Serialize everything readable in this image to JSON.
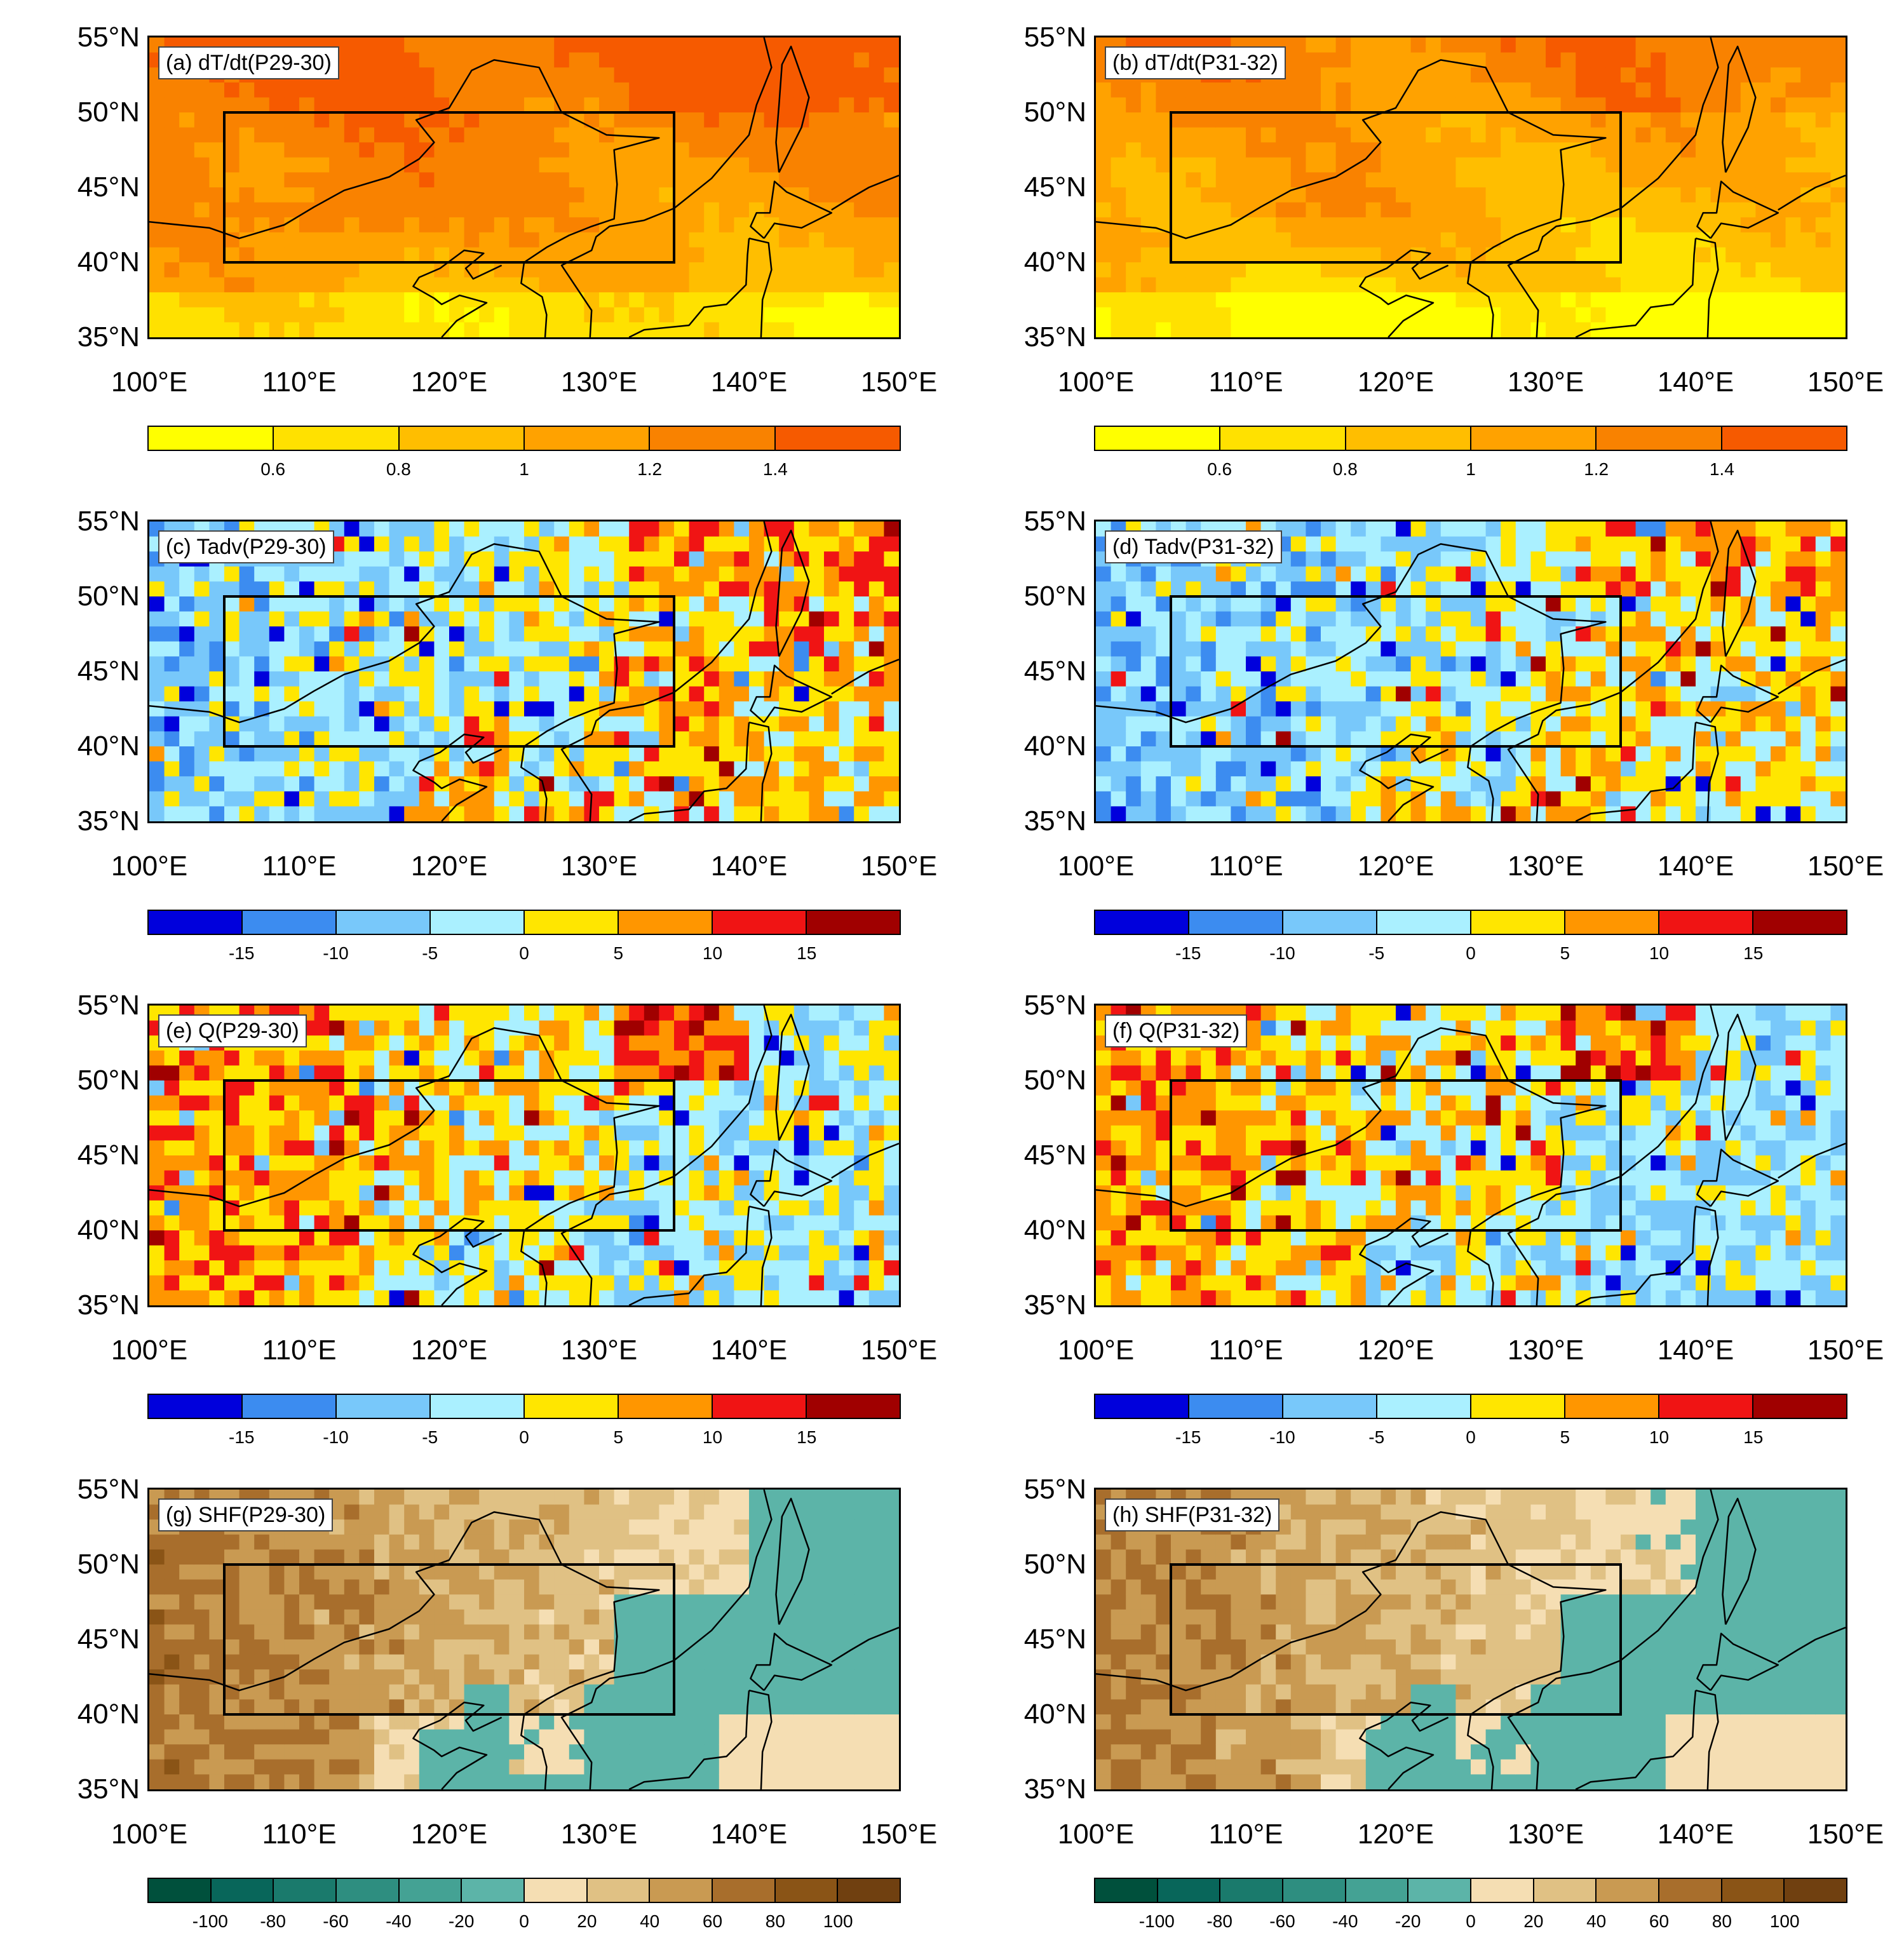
{
  "figure": {
    "lat_labels": [
      "55°N",
      "50°N",
      "45°N",
      "40°N",
      "35°N"
    ],
    "lon_labels": [
      "100°E",
      "110°E",
      "120°E",
      "130°E",
      "140°E",
      "150°E"
    ],
    "box_region": {
      "lon": [
        105,
        135
      ],
      "lat": [
        40,
        50
      ]
    },
    "colorbars": {
      "dtdt": {
        "colors": [
          "#ffff00",
          "#ffe100",
          "#ffbe00",
          "#ffa200",
          "#f98200",
          "#f65a00"
        ],
        "labels": [
          "0.6",
          "0.8",
          "1",
          "1.2",
          "1.4"
        ]
      },
      "tadv": {
        "colors": [
          "#0000dc",
          "#3c8cf0",
          "#78c8fa",
          "#aaf0ff",
          "#ffe600",
          "#ff9600",
          "#f01414",
          "#a00000"
        ],
        "labels": [
          "-15",
          "-10",
          "-5",
          "0",
          "5",
          "10",
          "15"
        ]
      },
      "q": {
        "colors": [
          "#0000dc",
          "#3c8cf0",
          "#78c8fa",
          "#aaf0ff",
          "#ffe600",
          "#ff9600",
          "#f01414",
          "#a00000"
        ],
        "labels": [
          "-15",
          "-10",
          "-5",
          "0",
          "5",
          "10",
          "15"
        ]
      },
      "shf": {
        "colors": [
          "#00503c",
          "#08665a",
          "#1a7a6c",
          "#2e8e80",
          "#44a294",
          "#5cb4a8",
          "#f5deb3",
          "#e0c184",
          "#c99a52",
          "#a86e2c",
          "#8a5416",
          "#704010"
        ],
        "labels": [
          "-100",
          "-80",
          "-60",
          "-40",
          "-20",
          "0",
          "20",
          "40",
          "60",
          "80",
          "100"
        ]
      }
    },
    "panels": [
      {
        "tag": "(a) dT/dt(P29-30)",
        "field": "dtdt",
        "colorbar": "dtdt",
        "variant": 0
      },
      {
        "tag": "(b) dT/dt(P31-32)",
        "field": "dtdt",
        "colorbar": "dtdt",
        "variant": 1
      },
      {
        "tag": "(c) Tadv(P29-30)",
        "field": "tadv",
        "colorbar": "tadv",
        "variant": 0
      },
      {
        "tag": "(d) Tadv(P31-32)",
        "field": "tadv",
        "colorbar": "tadv",
        "variant": 1
      },
      {
        "tag": "(e) Q(P29-30)",
        "field": "q",
        "colorbar": "q",
        "variant": 0
      },
      {
        "tag": "(f) Q(P31-32)",
        "field": "q",
        "colorbar": "q",
        "variant": 1
      },
      {
        "tag": "(g) SHF(P29-30)",
        "field": "shf",
        "colorbar": "shf",
        "variant": 0
      },
      {
        "tag": "(h) SHF(P31-32)",
        "field": "shf",
        "colorbar": "shf",
        "variant": 1
      }
    ]
  }
}
